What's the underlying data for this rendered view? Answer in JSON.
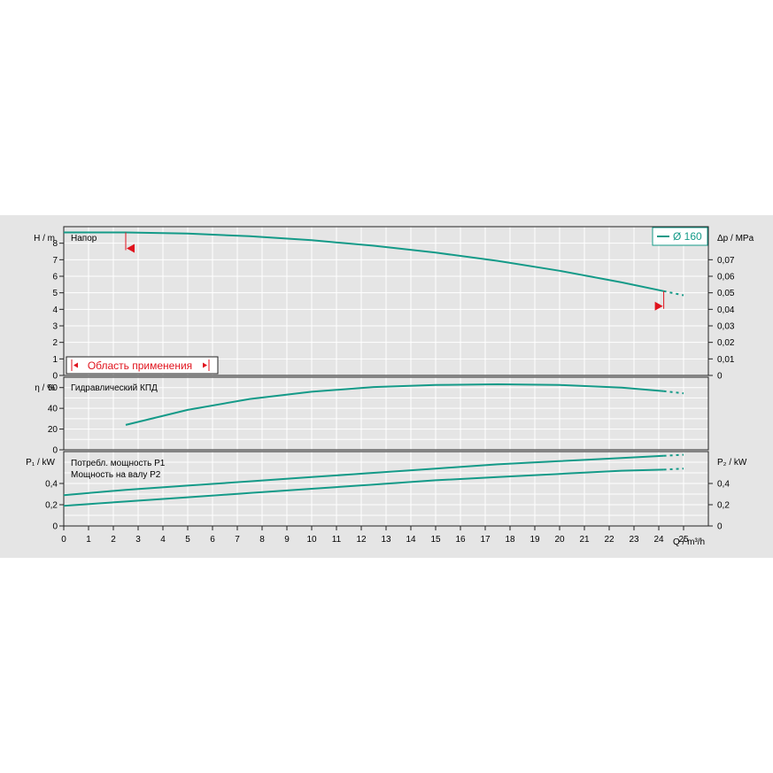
{
  "chart_data": [
    {
      "type": "line",
      "panel": "head",
      "label": "Напор",
      "y_axis_left": {
        "label": "H / m",
        "ylim": [
          0,
          9
        ],
        "ticks": [
          0,
          1,
          2,
          3,
          4,
          5,
          6,
          7,
          8
        ]
      },
      "y_axis_right": {
        "label": "Δp / MPa",
        "ylim": [
          0,
          0.09
        ],
        "ticks": [
          "0",
          "0,01",
          "0,02",
          "0,03",
          "0,04",
          "0,05",
          "0,06",
          "0,07"
        ]
      },
      "series": [
        {
          "name": "Ø 160",
          "x": [
            0,
            2.5,
            5,
            7.5,
            10,
            12.5,
            15,
            17.5,
            20,
            22.5,
            24.2
          ],
          "y": [
            8.65,
            8.65,
            8.58,
            8.42,
            8.18,
            7.85,
            7.43,
            6.93,
            6.33,
            5.63,
            5.1
          ]
        },
        {
          "name": "Ø 160 ext",
          "x": [
            24.2,
            25
          ],
          "y": [
            5.1,
            4.85
          ]
        }
      ],
      "legend": {
        "entry": "Ø 160",
        "position": "top-right"
      },
      "annotation": {
        "text": "Область применения",
        "q_min": 2.5,
        "q_max": 24.2
      }
    },
    {
      "type": "line",
      "panel": "efficiency",
      "label": "Гидравлический КПД",
      "y_axis_left": {
        "label": "η / %",
        "ylim": [
          0,
          70
        ],
        "ticks": [
          0,
          20,
          40,
          60
        ]
      },
      "series": [
        {
          "name": "Гидравлический КПД",
          "x": [
            2.5,
            5,
            7.5,
            10,
            12.5,
            15,
            17.5,
            20,
            22.5,
            24.2
          ],
          "y": [
            24,
            38.5,
            49,
            56,
            60.5,
            62.5,
            63.2,
            62.5,
            60,
            56.5
          ]
        },
        {
          "name": "η ext",
          "x": [
            24.2,
            25
          ],
          "y": [
            56.5,
            54.5
          ]
        }
      ]
    },
    {
      "type": "line",
      "panel": "power",
      "labels": [
        "Потребл. мощность P1",
        "Мощность на валу P2"
      ],
      "y_axis_left": {
        "label": "P₁ / kW",
        "ylim": [
          0,
          0.7
        ],
        "ticks": [
          "0",
          "0,2",
          "0,4"
        ]
      },
      "y_axis_right": {
        "label": "P₂ / kW",
        "ticks": [
          "0",
          "0,2",
          "0,4"
        ]
      },
      "x_axis": {
        "label": "Q / m³/h",
        "xlim": [
          0,
          26
        ],
        "ticks": [
          0,
          1,
          2,
          3,
          4,
          5,
          6,
          7,
          8,
          9,
          10,
          11,
          12,
          13,
          14,
          15,
          16,
          17,
          18,
          19,
          20,
          21,
          22,
          23,
          24,
          25
        ]
      },
      "series": [
        {
          "name": "Потребл. мощность P1",
          "x": [
            0,
            2.5,
            5,
            7.5,
            10,
            12.5,
            15,
            17.5,
            20,
            22.5,
            24.2
          ],
          "y": [
            0.29,
            0.34,
            0.38,
            0.42,
            0.46,
            0.5,
            0.54,
            0.58,
            0.61,
            0.64,
            0.66
          ]
        },
        {
          "name": "P1 ext",
          "x": [
            24.2,
            25
          ],
          "y": [
            0.66,
            0.67
          ]
        },
        {
          "name": "Мощность на валу P2",
          "x": [
            0,
            2.5,
            5,
            7.5,
            10,
            12.5,
            15,
            17.5,
            20,
            22.5,
            24.2
          ],
          "y": [
            0.19,
            0.23,
            0.27,
            0.31,
            0.35,
            0.39,
            0.43,
            0.46,
            0.49,
            0.52,
            0.53
          ]
        },
        {
          "name": "P2 ext",
          "x": [
            24.2,
            25
          ],
          "y": [
            0.53,
            0.54
          ]
        }
      ]
    }
  ],
  "colors": {
    "curve": "#149a88",
    "background": "#e5e5e5",
    "grid": "#ffffff",
    "marker": "#e0141e"
  }
}
